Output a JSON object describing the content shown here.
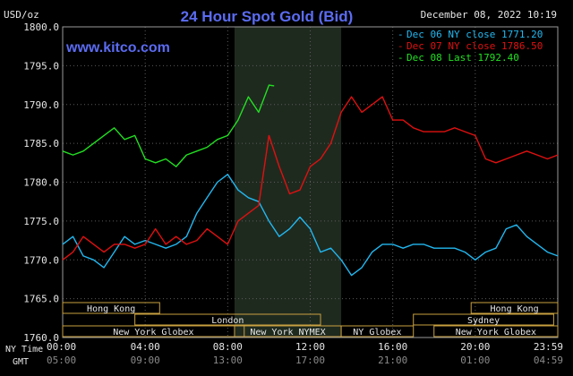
{
  "header": {
    "title": "24 Hour Spot Gold (Bid)",
    "unit": "USD/oz",
    "date_time": "December 08, 2022 10:19",
    "watermark": "www.kitco.com"
  },
  "colors": {
    "background": "#000000",
    "plot_background": "#000000",
    "market_highlight": "#1f2a1f",
    "grid": "#5a5a5a",
    "text": "#e6e6e6",
    "title": "#5b6cf2",
    "watermark": "#5b6cf2",
    "dec06": "#22b8f0",
    "dec07": "#e01010",
    "dec08": "#22e022",
    "session_box": "#c8a040"
  },
  "chart_data": {
    "type": "line",
    "title": "24 Hour Spot Gold (Bid)",
    "ylabel": "USD/oz",
    "ylim": [
      1760,
      1800
    ],
    "yticks": [
      1760.0,
      1765.0,
      1770.0,
      1775.0,
      1780.0,
      1785.0,
      1790.0,
      1795.0,
      1800.0
    ],
    "ytick_labels": [
      "1760.0",
      "1765.0",
      "1770.0",
      "1775.0",
      "1780.0",
      "1785.0",
      "1790.0",
      "1795.0",
      "1800.0"
    ],
    "xlim": [
      0,
      24
    ],
    "xticks": [
      0,
      4,
      8,
      12,
      16,
      20,
      24
    ],
    "x_labels_ny": [
      "00:00",
      "04:00",
      "08:00",
      "12:00",
      "16:00",
      "20:00",
      "23:59"
    ],
    "x_labels_gmt": [
      "05:00",
      "09:00",
      "13:00",
      "17:00",
      "21:00",
      "01:00",
      "04:59"
    ],
    "x_label_ny_title": "NY Time",
    "x_label_gmt_title": "GMT",
    "market_hours": [
      8.33,
      13.5
    ],
    "grid": true,
    "legend_position": "top-right",
    "series": [
      {
        "name": "Dec 06 NY close 1771.20",
        "color": "#22b8f0",
        "x": [
          0,
          0.5,
          1,
          1.5,
          2,
          2.5,
          3,
          3.5,
          4,
          4.5,
          5,
          5.5,
          6,
          6.5,
          7,
          7.5,
          8,
          8.5,
          9,
          9.5,
          10,
          10.5,
          11,
          11.5,
          12,
          12.5,
          13,
          13.5,
          14,
          14.5,
          15,
          15.5,
          16,
          16.5,
          17,
          17.5,
          18,
          18.5,
          19,
          19.5,
          20,
          20.5,
          21,
          21.5,
          22,
          22.5,
          23,
          23.5,
          24
        ],
        "y": [
          1772,
          1773,
          1770.5,
          1770,
          1769,
          1771,
          1773,
          1772,
          1772.5,
          1772,
          1771.5,
          1772,
          1773,
          1776,
          1778,
          1780,
          1781,
          1779,
          1778,
          1777.5,
          1775,
          1773,
          1774,
          1775.5,
          1774,
          1771,
          1771.5,
          1770,
          1768,
          1769,
          1771,
          1772,
          1772,
          1771.5,
          1772,
          1772,
          1771.5,
          1771.5,
          1771.5,
          1771,
          1770,
          1771,
          1771.5,
          1774,
          1774.5,
          1773,
          1772,
          1771,
          1770.5
        ]
      },
      {
        "name": "Dec 07 NY close 1786.50",
        "color": "#e01010",
        "x": [
          0,
          0.5,
          1,
          1.5,
          2,
          2.5,
          3,
          3.5,
          4,
          4.5,
          5,
          5.5,
          6,
          6.5,
          7,
          7.5,
          8,
          8.5,
          9,
          9.5,
          10,
          10.5,
          11,
          11.5,
          12,
          12.5,
          13,
          13.5,
          14,
          14.5,
          15,
          15.5,
          16,
          16.5,
          17,
          17.5,
          18,
          18.5,
          19,
          19.5,
          20,
          20.5,
          21,
          21.5,
          22,
          22.5,
          23,
          23.5,
          24
        ],
        "y": [
          1770,
          1771,
          1773,
          1772,
          1771,
          1772,
          1772,
          1771.5,
          1772,
          1774,
          1772,
          1773,
          1772,
          1772.5,
          1774,
          1773,
          1772,
          1775,
          1776,
          1777,
          1786,
          1782,
          1778.5,
          1779,
          1782,
          1783,
          1785,
          1789,
          1791,
          1789,
          1790,
          1791,
          1788,
          1788,
          1787,
          1786.5,
          1786.5,
          1786.5,
          1787,
          1786.5,
          1786,
          1783,
          1782.5,
          1783,
          1783.5,
          1784,
          1783.5,
          1783,
          1783.5
        ]
      },
      {
        "name": "Dec 08 Last 1792.40",
        "color": "#22e022",
        "x": [
          0,
          0.5,
          1,
          1.5,
          2,
          2.5,
          3,
          3.5,
          4,
          4.5,
          5,
          5.5,
          6,
          6.5,
          7,
          7.5,
          8,
          8.5,
          9,
          9.5,
          10,
          10.25
        ],
        "y": [
          1784,
          1783.5,
          1784,
          1785,
          1786,
          1787,
          1785.5,
          1786,
          1783,
          1782.5,
          1783,
          1782,
          1783.5,
          1784,
          1784.5,
          1785.5,
          1786,
          1788,
          1791,
          1789,
          1792.5,
          1792.4
        ]
      }
    ],
    "sessions": [
      {
        "name": "Hong Kong",
        "start": -1.2,
        "end": 4.7,
        "row": 0
      },
      {
        "name": "London",
        "start": 3.5,
        "end": 12.5,
        "row": 1
      },
      {
        "name": "New York Globex",
        "start": -1.2,
        "end": 8.8,
        "row": 2
      },
      {
        "name": "New York NYMEX",
        "start": 8.33,
        "end": 13.5,
        "row": 2
      },
      {
        "name": "NY Globex",
        "start": 13.5,
        "end": 17.0,
        "row": 2
      },
      {
        "name": "Hong Kong",
        "start": 19.8,
        "end": 25.2,
        "row": 0
      },
      {
        "name": "Sydney",
        "start": 17.0,
        "end": 23.8,
        "row": 1
      },
      {
        "name": "New York Globex",
        "start": 18.0,
        "end": 25.2,
        "row": 2
      }
    ]
  }
}
